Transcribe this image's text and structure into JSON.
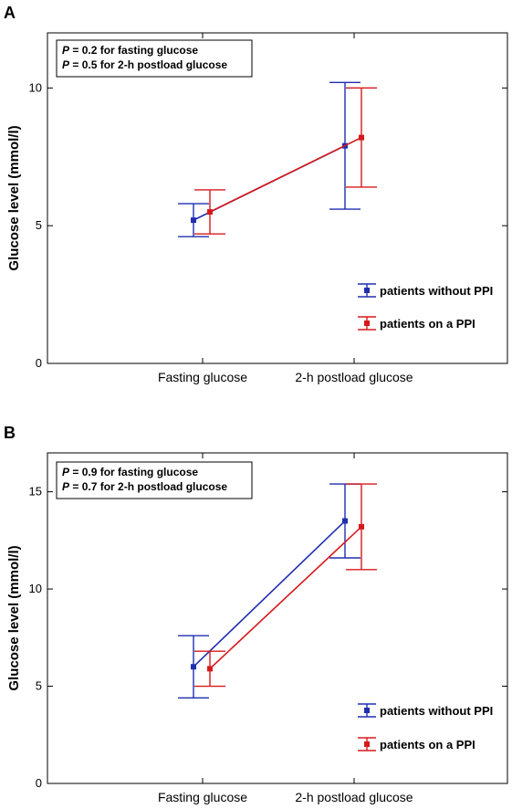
{
  "chart_data": [
    {
      "type": "line",
      "panel": "A",
      "categories": [
        "Fasting glucose",
        "2-h postload glucose"
      ],
      "ylabel": "Glucose level (mmol/l)",
      "xlabel": "",
      "ylim": [
        0,
        12
      ],
      "yticks": [
        0,
        5,
        10
      ],
      "annotations": [
        {
          "p": "P",
          "rest": " = 0.2 for fasting glucose"
        },
        {
          "p": "P",
          "rest": " = 0.5 for 2-h postload glucose"
        }
      ],
      "series": [
        {
          "name": "patients without PPI",
          "color": "#1f2fb0",
          "values": [
            5.2,
            7.9
          ],
          "lower": [
            4.6,
            5.6
          ],
          "upper": [
            5.8,
            10.2
          ]
        },
        {
          "name": "patients on a PPI",
          "color": "#d7191c",
          "values": [
            5.5,
            8.2
          ],
          "lower": [
            4.7,
            6.4
          ],
          "upper": [
            6.3,
            10.0
          ]
        }
      ],
      "grid": false,
      "legend": "right"
    },
    {
      "type": "line",
      "panel": "B",
      "categories": [
        "Fasting glucose",
        "2-h postload glucose"
      ],
      "ylabel": "Glucose level (mmol/l)",
      "xlabel": "",
      "ylim": [
        0,
        17
      ],
      "yticks": [
        0,
        5,
        10,
        15
      ],
      "annotations": [
        {
          "p": "P",
          "rest": " = 0.9 for fasting glucose"
        },
        {
          "p": "P",
          "rest": " = 0.7 for 2-h postload glucose"
        }
      ],
      "series": [
        {
          "name": "patients without PPI",
          "color": "#1f2fb0",
          "values": [
            6.0,
            13.5
          ],
          "lower": [
            4.4,
            11.6
          ],
          "upper": [
            7.6,
            15.4
          ]
        },
        {
          "name": "patients on a PPI",
          "color": "#d7191c",
          "values": [
            5.9,
            13.2
          ],
          "lower": [
            5.0,
            11.0
          ],
          "upper": [
            6.8,
            15.4
          ]
        }
      ],
      "grid": false,
      "legend": "right"
    }
  ]
}
